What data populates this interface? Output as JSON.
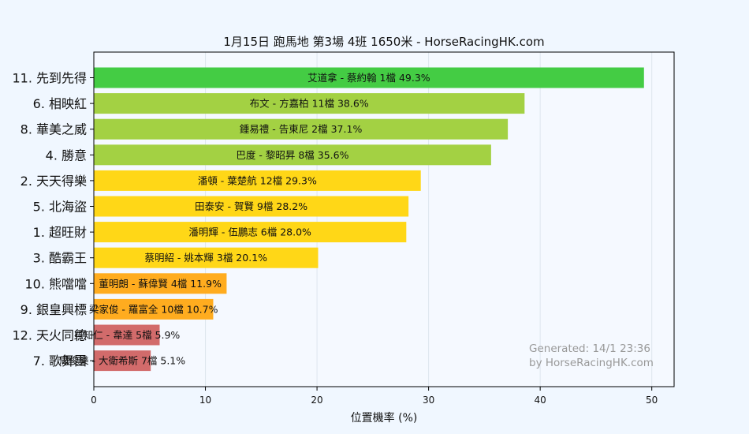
{
  "chart_data": {
    "type": "bar",
    "orientation": "horizontal",
    "title": "1月15日  跑馬地  第3場  4班  1650米 - HorseRacingHK.com",
    "xlabel": "位置機率 (%)",
    "ylabel": "",
    "xlim": [
      0,
      52
    ],
    "xticks": [
      0,
      10,
      20,
      30,
      40,
      50
    ],
    "grid": true,
    "categories": [
      "11. 先到先得",
      "6. 相映紅",
      "8. 華美之威",
      "4. 勝意",
      "2. 天天得樂",
      "5. 北海盜",
      "1. 超旺財",
      "3. 酷霸王",
      "10. 熊噹噹",
      "9. 銀皇興標",
      "12. 天火同德",
      "7. 歌舞團"
    ],
    "values": [
      49.3,
      38.6,
      37.1,
      35.6,
      29.3,
      28.2,
      28.0,
      20.1,
      11.9,
      10.7,
      5.9,
      5.1
    ],
    "bar_labels": [
      "艾道拿 - 蔡約翰 1檔  49.3%",
      "布文 - 方嘉柏 11檔  38.6%",
      "鍾易禮 - 告東尼 2檔  37.1%",
      "巴度 - 黎昭昇 8檔  35.6%",
      "潘頓 - 葉楚航 12檔  29.3%",
      "田泰安 - 賀賢 9檔  28.2%",
      "潘明輝 - 伍鵬志 6檔  28.0%",
      "蔡明紹 - 姚本輝 3檔  20.1%",
      "董明朗 - 蘇偉賢 4檔  11.9%",
      "梁家俊 - 羅富全 10檔  10.7%",
      "貝知仁 - 韋達 5檔  5.9%",
      "周俊樂 - 大衛希斯 7檔  5.1%"
    ],
    "colors": [
      "#44cc44",
      "#a3d143",
      "#a3d143",
      "#a3d143",
      "#ffd717",
      "#ffd717",
      "#ffd717",
      "#ffd717",
      "#ffac1f",
      "#ffac1f",
      "#d26b6b",
      "#d26b6b"
    ],
    "annotation": [
      "Generated: 14/1 23:36",
      "by HorseRacingHK.com"
    ]
  },
  "colors": {
    "background": "#f0f7ff",
    "plot_background": "#f5f9ff",
    "grid": "#dde5ee",
    "watermark": "#999999"
  }
}
